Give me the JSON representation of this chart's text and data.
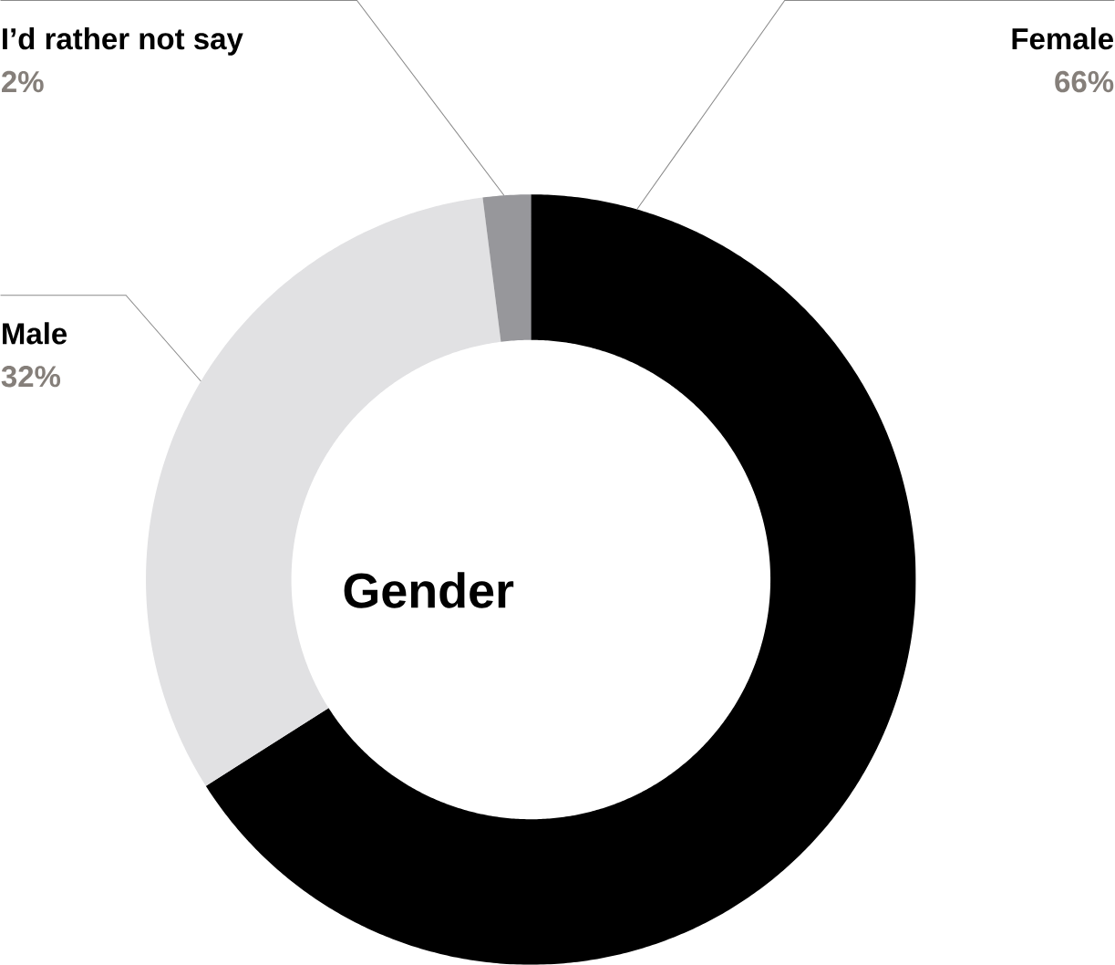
{
  "chart_data": {
    "type": "donut",
    "title": "Gender",
    "categories": [
      "Female",
      "Male",
      "I’d rather not say"
    ],
    "values": [
      66,
      32,
      2
    ],
    "value_labels": [
      "66%",
      "32%",
      "2%"
    ],
    "colors": [
      "#000000",
      "#e1e1e3",
      "#97979b"
    ]
  }
}
